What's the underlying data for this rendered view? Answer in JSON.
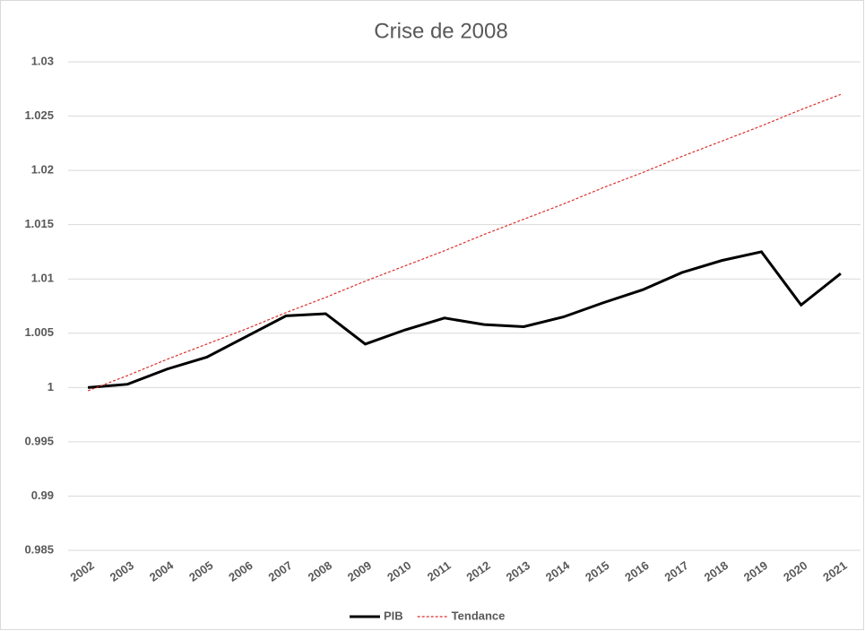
{
  "chart_data": {
    "type": "line",
    "title": "Crise de 2008",
    "categories": [
      "2002",
      "2003",
      "2004",
      "2005",
      "2006",
      "2007",
      "2008",
      "2009",
      "2010",
      "2011",
      "2012",
      "2013",
      "2014",
      "2015",
      "2016",
      "2017",
      "2018",
      "2019",
      "2020",
      "2021"
    ],
    "series": [
      {
        "name": "PIB",
        "color": "#000000",
        "style": "solid",
        "values": [
          1.0,
          1.0003,
          1.0017,
          1.0028,
          1.0047,
          1.0066,
          1.0068,
          1.004,
          1.0053,
          1.0064,
          1.0058,
          1.0056,
          1.0065,
          1.0078,
          1.009,
          1.0106,
          1.0117,
          1.0125,
          1.0076,
          1.0105
        ]
      },
      {
        "name": "Tendance",
        "color": "#d9302c",
        "style": "dashed",
        "values": [
          0.9997,
          1.0011,
          1.0026,
          1.004,
          1.0054,
          1.0069,
          1.0083,
          1.0098,
          1.0112,
          1.0126,
          1.0141,
          1.0155,
          1.0169,
          1.0184,
          1.0198,
          1.0213,
          1.0227,
          1.0241,
          1.0256,
          1.027
        ]
      }
    ],
    "ylim": [
      0.985,
      1.03
    ],
    "yticks": [
      0.985,
      0.99,
      0.995,
      1,
      1.005,
      1.01,
      1.015,
      1.02,
      1.025,
      1.03
    ],
    "grid": true,
    "legend": "bottom"
  }
}
